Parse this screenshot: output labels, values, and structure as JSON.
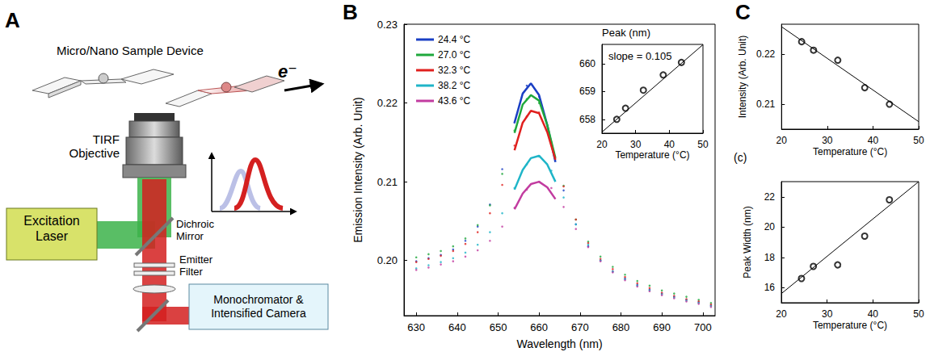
{
  "diagram": {
    "panel": "A",
    "labels": {
      "device": "Micro/Nano Sample Device",
      "electron": "e⁻",
      "objective": "TIRF Objective",
      "laser": "Excitation Laser",
      "dichroic": "Dichroic Mirror",
      "filter": "Emitter Filter",
      "detector": "Monochromator & Intensified Camera"
    }
  },
  "chart_data": [
    {
      "panel": "B",
      "type": "scatter",
      "marker": "dot",
      "x_label": "Wavelength (nm)",
      "y_label": "Emission Intensity (Arb. Unit)",
      "xlim": [
        627,
        703
      ],
      "xticks": [
        630,
        640,
        650,
        660,
        670,
        680,
        690,
        700
      ],
      "ylim": [
        0.193,
        0.23
      ],
      "yticks": [
        {
          "value": 0.2,
          "label": "0.20"
        },
        0.21,
        0.22,
        0.23
      ],
      "legend": "top-left",
      "grid": false,
      "x": [
        630,
        633,
        636,
        639,
        642,
        645,
        648,
        651,
        654,
        657,
        660,
        663,
        666,
        669,
        672,
        675,
        678,
        681,
        684,
        687,
        690,
        693,
        696,
        699,
        702
      ],
      "fit_x": [
        654,
        656,
        658,
        660,
        662,
        664
      ],
      "series": [
        {
          "name": "24.4 °C",
          "color": "#1a3fc4",
          "values": [
            0.1999,
            0.2003,
            0.2007,
            0.2014,
            0.2025,
            0.2043,
            0.2071,
            0.2116,
            0.2175,
            0.2222,
            0.2208,
            0.2148,
            0.2089,
            0.2046,
            0.2018,
            0.2,
            0.1986,
            0.1977,
            0.1969,
            0.1963,
            0.1958,
            0.1954,
            0.195,
            0.1947,
            0.1943
          ],
          "fit": [
            0.2175,
            0.2212,
            0.2225,
            0.221,
            0.2172,
            0.2125
          ]
        },
        {
          "name": "27.0 °C",
          "color": "#1fa83c",
          "values": [
            0.2004,
            0.2008,
            0.2012,
            0.2018,
            0.2028,
            0.2045,
            0.207,
            0.211,
            0.2165,
            0.2205,
            0.22,
            0.215,
            0.2095,
            0.2052,
            0.2024,
            0.2005,
            0.1992,
            0.1982,
            0.1974,
            0.1968,
            0.1962,
            0.1958,
            0.1954,
            0.195,
            0.1946
          ],
          "fit": [
            0.2162,
            0.2198,
            0.221,
            0.2203,
            0.2172,
            0.213
          ]
        },
        {
          "name": "32.3 °C",
          "color": "#e0201e",
          "values": [
            0.1998,
            0.2002,
            0.2006,
            0.2012,
            0.2021,
            0.2036,
            0.206,
            0.2096,
            0.2146,
            0.2183,
            0.2188,
            0.2148,
            0.2094,
            0.2052,
            0.2022,
            0.2002,
            0.1989,
            0.1979,
            0.1971,
            0.1965,
            0.1959,
            0.1955,
            0.1951,
            0.1948,
            0.1944
          ],
          "fit": [
            0.214,
            0.2175,
            0.219,
            0.2187,
            0.2163,
            0.2128
          ]
        },
        {
          "name": "38.2 °C",
          "color": "#1fb5c8",
          "values": [
            0.199,
            0.1994,
            0.1998,
            0.2003,
            0.201,
            0.202,
            0.2036,
            0.206,
            0.2092,
            0.2122,
            0.2132,
            0.2114,
            0.208,
            0.2046,
            0.202,
            0.2,
            0.1986,
            0.1976,
            0.1968,
            0.1962,
            0.1957,
            0.1953,
            0.1949,
            0.1946,
            0.1942
          ],
          "fit": [
            0.209,
            0.2115,
            0.213,
            0.2133,
            0.2122,
            0.21
          ]
        },
        {
          "name": "43.6 °C",
          "color": "#c23ca0",
          "values": [
            0.1988,
            0.1991,
            0.1995,
            0.1999,
            0.2005,
            0.2013,
            0.2025,
            0.2043,
            0.2067,
            0.209,
            0.21,
            0.2092,
            0.2068,
            0.204,
            0.2017,
            0.1999,
            0.1985,
            0.1975,
            0.1967,
            0.1961,
            0.1956,
            0.1952,
            0.1948,
            0.1945,
            0.1941
          ],
          "fit": [
            0.2065,
            0.2085,
            0.2097,
            0.21,
            0.2093,
            0.2078
          ]
        }
      ]
    },
    {
      "type": "scatter",
      "marker": "open",
      "x_label": "Temperature (°C)",
      "y_label": "Peak (nm)",
      "annotation": "slope = 0.105",
      "xlim": [
        20,
        50
      ],
      "xticks": [
        20,
        30,
        40,
        50
      ],
      "ylim": [
        657.5,
        660.7
      ],
      "yticks": [
        658,
        659,
        660
      ],
      "grid": false,
      "x": [
        24.4,
        27.0,
        32.3,
        38.2,
        43.6
      ],
      "fit_x": [
        20,
        50
      ],
      "series": [
        {
          "color": "#000000",
          "values": [
            658.0,
            658.4,
            659.05,
            659.6,
            660.05
          ],
          "fit": [
            657.54,
            660.69
          ]
        }
      ]
    },
    {
      "panel": "C",
      "type": "scatter",
      "marker": "open",
      "x_label": "Temperature (°C)",
      "y_label": "Intensity (Arb. Unit)",
      "xlim": [
        20,
        50
      ],
      "xticks": [
        20,
        30,
        40,
        50
      ],
      "ylim": [
        0.205,
        0.226
      ],
      "yticks": [
        0.21,
        0.22
      ],
      "grid": false,
      "x": [
        24.4,
        27.0,
        32.3,
        38.2,
        43.6
      ],
      "fit_x": [
        20,
        50
      ],
      "series": [
        {
          "color": "#000000",
          "values": [
            0.2225,
            0.2208,
            0.2188,
            0.2133,
            0.21
          ],
          "fit": [
            0.2255,
            0.2065
          ]
        }
      ]
    },
    {
      "type": "scatter",
      "marker": "open",
      "x_label": "Temperature (°C)",
      "y_label": "Peak Width (nm)",
      "annotation": "(c)",
      "xlim": [
        20,
        50
      ],
      "xticks": [
        20,
        30,
        40,
        50
      ],
      "ylim": [
        15,
        23
      ],
      "yticks": [
        16,
        18,
        20,
        22
      ],
      "grid": false,
      "x": [
        24.4,
        27.0,
        32.3,
        38.2,
        43.6
      ],
      "fit_x": [
        20,
        50
      ],
      "series": [
        {
          "color": "#000000",
          "values": [
            16.6,
            17.4,
            17.5,
            19.4,
            21.8
          ],
          "fit": [
            15.6,
            23.0
          ]
        }
      ]
    }
  ]
}
